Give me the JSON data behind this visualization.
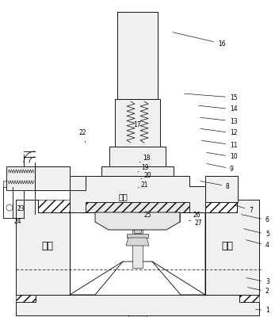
{
  "bg_color": "#ffffff",
  "line_color": "#000000",
  "figsize": [
    3.47,
    4.0
  ],
  "dpi": 100,
  "labels": {
    "left_chamber": "左腔",
    "right_chamber": "右腔",
    "upper_chamber": "上腔"
  },
  "part_annotations": [
    [
      "1",
      335,
      392,
      320,
      390
    ],
    [
      "2",
      335,
      368,
      310,
      362
    ],
    [
      "3",
      335,
      356,
      308,
      350
    ],
    [
      "4",
      335,
      310,
      308,
      302
    ],
    [
      "5",
      335,
      296,
      305,
      288
    ],
    [
      "6",
      335,
      278,
      302,
      270
    ],
    [
      "7",
      314,
      265,
      293,
      258
    ],
    [
      "8",
      285,
      235,
      250,
      228
    ],
    [
      "9",
      290,
      213,
      258,
      206
    ],
    [
      "10",
      290,
      198,
      258,
      192
    ],
    [
      "11",
      290,
      183,
      252,
      177
    ],
    [
      "12",
      290,
      168,
      250,
      162
    ],
    [
      "13",
      290,
      153,
      250,
      148
    ],
    [
      "14",
      290,
      138,
      248,
      133
    ],
    [
      "15",
      290,
      123,
      230,
      118
    ],
    [
      "16",
      275,
      55,
      215,
      40
    ],
    [
      "17",
      168,
      158,
      167,
      168
    ],
    [
      "18",
      180,
      200,
      176,
      205
    ],
    [
      "19",
      178,
      212,
      174,
      217
    ],
    [
      "20",
      182,
      222,
      178,
      226
    ],
    [
      "21",
      178,
      233,
      174,
      237
    ],
    [
      "22",
      100,
      168,
      108,
      180
    ],
    [
      "23",
      22,
      264,
      22,
      257
    ],
    [
      "24",
      18,
      280,
      18,
      275
    ],
    [
      "25",
      182,
      272,
      175,
      268
    ],
    [
      "26",
      244,
      272,
      238,
      268
    ],
    [
      "27",
      246,
      282,
      238,
      278
    ]
  ]
}
